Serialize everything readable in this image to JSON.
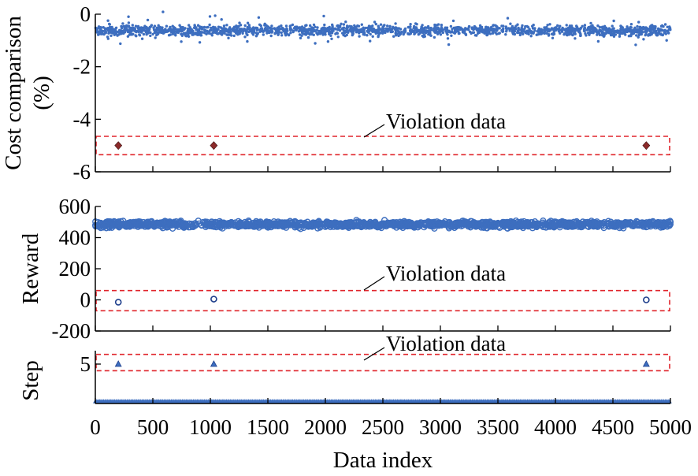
{
  "colors": {
    "data": "#3d6ebf",
    "violation_marker": "#8b2a2a",
    "box": "#e0242b",
    "axis": "#000000"
  },
  "chart_data": [
    {
      "type": "scatter",
      "ylabel_lines": [
        "Cost comparison",
        "(%)"
      ],
      "ylim": [
        -6,
        0
      ],
      "yticks": [
        0,
        -2,
        -4,
        -6
      ],
      "ytick_labels": [
        "0",
        "-2",
        "-4",
        "-6"
      ],
      "xlim": [
        0,
        5000
      ],
      "normal_data": {
        "x_range": [
          0,
          5000
        ],
        "typical_y_range": [
          -0.9,
          -0.4
        ],
        "center": -0.62
      },
      "violation_data": {
        "x": [
          200,
          1030,
          4790
        ],
        "y": [
          -5.0,
          -5.0,
          -5.0
        ],
        "marker": "diamond"
      },
      "violation_box_y": [
        -5.35,
        -4.65
      ],
      "annotation": "Violation data"
    },
    {
      "type": "scatter",
      "ylabel": "Reward",
      "ylim": [
        -200,
        600
      ],
      "yticks": [
        600,
        400,
        200,
        0,
        -200
      ],
      "ytick_labels": [
        "600",
        "400",
        "200",
        "0",
        "-200"
      ],
      "xlim": [
        0,
        5000
      ],
      "normal_data": {
        "x_range": [
          0,
          5000
        ],
        "typical_y_range": [
          455,
          515
        ],
        "center": 485
      },
      "violation_data": {
        "x": [
          200,
          1030,
          4790
        ],
        "y": [
          -15,
          5,
          0
        ],
        "marker": "circle"
      },
      "violation_box_y": [
        -70,
        60
      ],
      "annotation": "Violation data"
    },
    {
      "type": "scatter",
      "ylabel": "Step",
      "ylim": [
        -0.3,
        6.8
      ],
      "yticks": [
        5
      ],
      "ytick_labels": [
        "5"
      ],
      "xlim": [
        0,
        5000
      ],
      "xticks": [
        0,
        500,
        1000,
        1500,
        2000,
        2500,
        3000,
        3500,
        4000,
        4500,
        5000
      ],
      "xtick_labels": [
        "0",
        "500",
        "1000",
        "1500",
        "2000",
        "2500",
        "3000",
        "3500",
        "4000",
        "4500",
        "5000"
      ],
      "xlabel": "Data index",
      "normal_data": {
        "x_range": [
          0,
          5000
        ],
        "y": 0
      },
      "violation_data": {
        "x": [
          200,
          1030,
          4790
        ],
        "y": [
          5,
          5,
          5
        ],
        "marker": "triangle"
      },
      "violation_box_y": [
        4.1,
        6.3
      ],
      "annotation": "Violation data"
    }
  ]
}
